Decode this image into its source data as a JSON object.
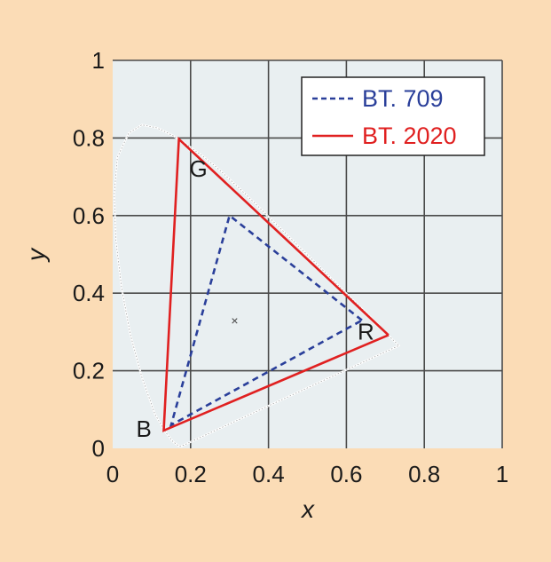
{
  "chart_data": {
    "type": "line",
    "title": "",
    "xlabel": "x",
    "ylabel": "y",
    "xlim": [
      0,
      1
    ],
    "ylim": [
      0,
      1
    ],
    "grid": true,
    "legend_position": "top-right",
    "x_ticks": [
      "0",
      "0.2",
      "0.4",
      "0.6",
      "0.8",
      "1"
    ],
    "y_ticks": [
      "0",
      "0.2",
      "0.4",
      "0.6",
      "0.8",
      "1"
    ],
    "x_tick_values": [
      0,
      0.2,
      0.4,
      0.6,
      0.8,
      1
    ],
    "y_tick_values": [
      0,
      0.2,
      0.4,
      0.6,
      0.8,
      1
    ],
    "series": [
      {
        "name": "BT. 709",
        "style": "dashed",
        "color": "#2a3f9a",
        "x": [
          0.64,
          0.3,
          0.15,
          0.64
        ],
        "y": [
          0.33,
          0.6,
          0.06,
          0.33
        ]
      },
      {
        "name": "BT. 2020",
        "style": "solid",
        "color": "#e02020",
        "x": [
          0.708,
          0.17,
          0.131,
          0.708
        ],
        "y": [
          0.292,
          0.797,
          0.046,
          0.292
        ]
      }
    ],
    "spectral_locus": {
      "color": "#ffffff",
      "x": [
        0.175,
        0.172,
        0.166,
        0.155,
        0.137,
        0.109,
        0.075,
        0.045,
        0.023,
        0.008,
        0.004,
        0.012,
        0.041,
        0.075,
        0.114,
        0.155,
        0.193,
        0.23,
        0.266,
        0.302,
        0.337,
        0.373,
        0.408,
        0.443,
        0.477,
        0.512,
        0.545,
        0.579,
        0.612,
        0.644,
        0.673,
        0.699,
        0.719,
        0.735,
        0.175
      ],
      "y": [
        0.005,
        0.005,
        0.009,
        0.017,
        0.04,
        0.087,
        0.183,
        0.295,
        0.413,
        0.538,
        0.655,
        0.75,
        0.812,
        0.834,
        0.826,
        0.806,
        0.781,
        0.754,
        0.725,
        0.692,
        0.659,
        0.624,
        0.589,
        0.555,
        0.521,
        0.487,
        0.454,
        0.42,
        0.387,
        0.356,
        0.327,
        0.3,
        0.28,
        0.265,
        0.005
      ]
    },
    "annotations": [
      {
        "text": "G",
        "x": 0.22,
        "y": 0.7
      },
      {
        "text": "R",
        "x": 0.65,
        "y": 0.28
      },
      {
        "text": "B",
        "x": 0.08,
        "y": 0.03
      }
    ],
    "white_point": {
      "x": 0.313,
      "y": 0.329,
      "marker": "×"
    },
    "colors": {
      "background": "#fbdcb6",
      "plot_area": "#e9eff1",
      "grid": "#4a4a4a",
      "text": "#1a1a1a"
    }
  }
}
